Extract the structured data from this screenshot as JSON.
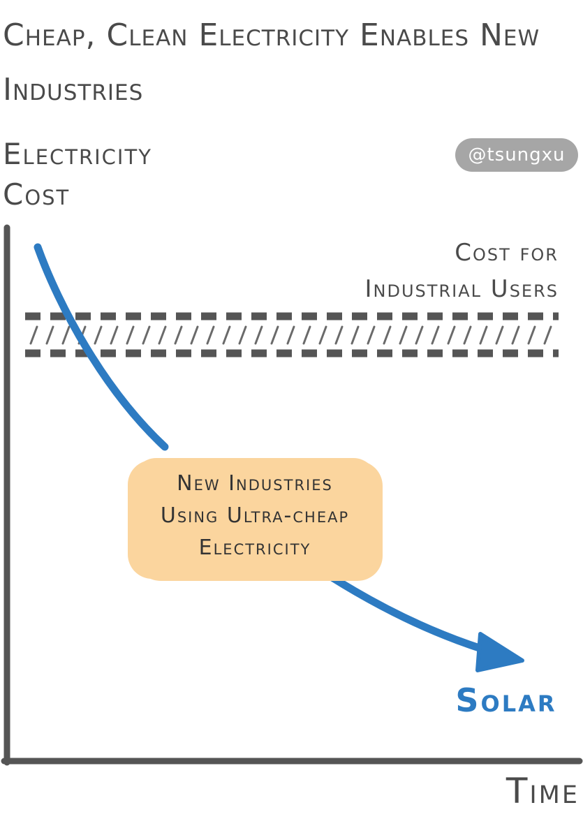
{
  "chart_data": {
    "type": "line",
    "title": "Cheap, Clean Electricity Enables New Industries",
    "xlabel": "Time",
    "ylabel": "Electricity\nCost",
    "credit": "@tsungxu",
    "threshold": {
      "label": "Cost for\nIndustrial Users"
    },
    "annotation": "New Industries\nUsing Ultra-cheap\nElectricity",
    "series": [
      {
        "name": "Solar",
        "color": "#2d7bc2",
        "values": []
      }
    ],
    "grid": false,
    "colors": {
      "axis": "#555555",
      "threshold": "#555555",
      "series": "#2d7bc2",
      "callout": "#fbd59e",
      "credit_badge": "#a6a6a6"
    }
  }
}
